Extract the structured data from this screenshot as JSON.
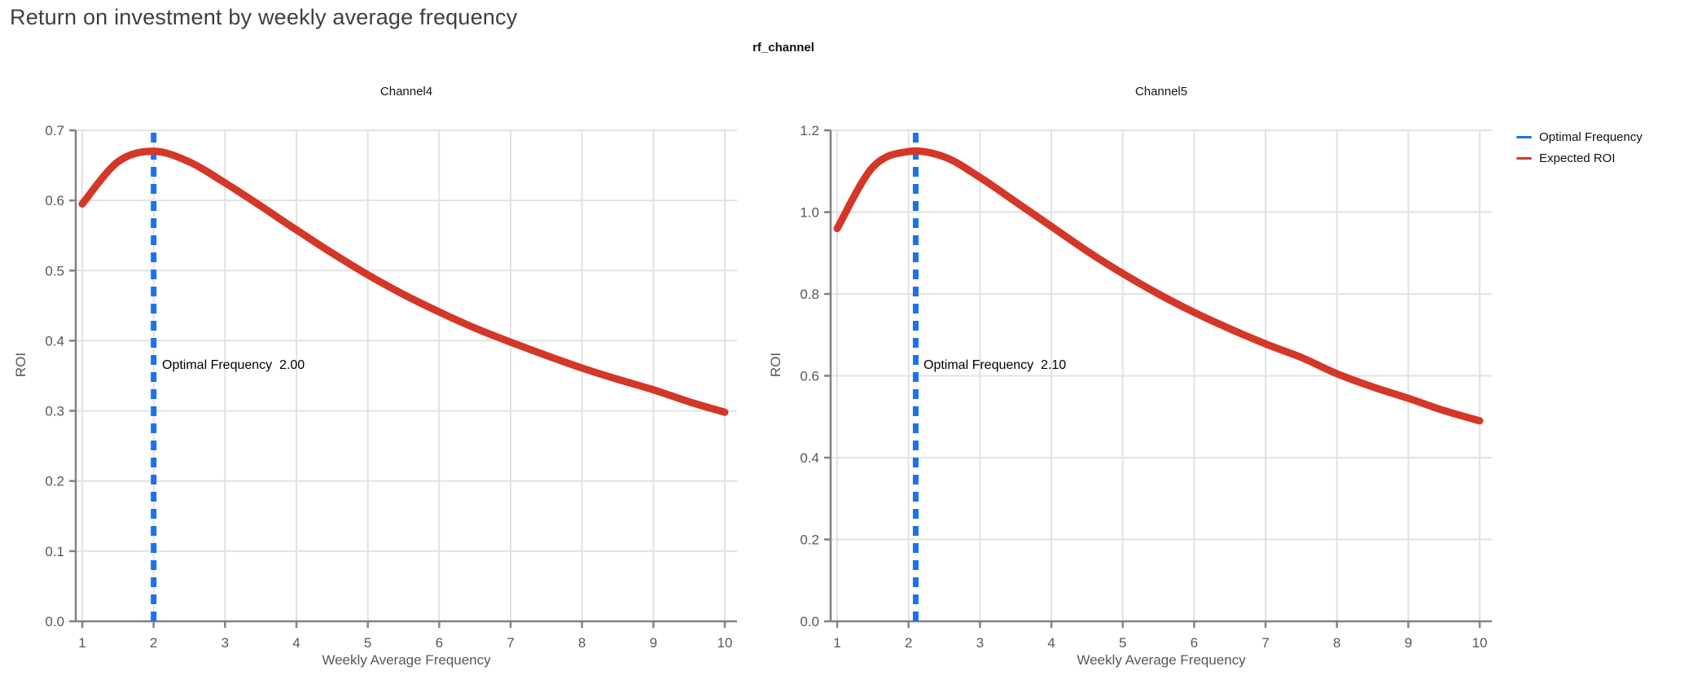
{
  "page": {
    "title": "Return on investment by weekly average frequency",
    "facet_label": "rf_channel"
  },
  "legend": {
    "items": [
      {
        "label": "Optimal Frequency",
        "color": "#1a73e8",
        "style": "dashed"
      },
      {
        "label": "Expected ROI",
        "color": "#d43728",
        "style": "solid"
      }
    ]
  },
  "chart_data": {
    "type": "line",
    "title": "Return on investment by weekly average frequency",
    "facet_by": "rf_channel",
    "xlabel": "Weekly Average Frequency",
    "ylabel": "ROI",
    "grid": true,
    "legend_position": "right",
    "colors": {
      "expected_roi_line": "#d43728",
      "optimal_frequency_line": "#1a73e8",
      "gridline": "#e2e2e2",
      "axis": "#7f8388",
      "tick_text": "#54585c"
    },
    "charts": [
      {
        "title": "Channel4",
        "optimal_frequency": 2.0,
        "annotation": "Optimal Frequency  2.00",
        "xlim": [
          1,
          10
        ],
        "ylim": [
          0,
          0.7
        ],
        "xticks": [
          1,
          2,
          3,
          4,
          5,
          6,
          7,
          8,
          9,
          10
        ],
        "yticks": [
          0.0,
          0.1,
          0.2,
          0.3,
          0.4,
          0.5,
          0.6,
          0.7
        ],
        "x": [
          1.0,
          1.5,
          2.0,
          2.5,
          3.0,
          3.5,
          4.0,
          4.5,
          5.0,
          5.5,
          6.0,
          6.5,
          7.0,
          7.5,
          8.0,
          8.5,
          9.0,
          9.5,
          10.0
        ],
        "roi": [
          0.595,
          0.655,
          0.67,
          0.655,
          0.625,
          0.592,
          0.558,
          0.525,
          0.494,
          0.466,
          0.441,
          0.418,
          0.398,
          0.379,
          0.361,
          0.345,
          0.33,
          0.313,
          0.298
        ]
      },
      {
        "title": "Channel5",
        "optimal_frequency": 2.1,
        "annotation": "Optimal Frequency  2.10",
        "xlim": [
          1,
          10
        ],
        "ylim": [
          0,
          1.2
        ],
        "xticks": [
          1,
          2,
          3,
          4,
          5,
          6,
          7,
          8,
          9,
          10
        ],
        "yticks": [
          0.0,
          0.2,
          0.4,
          0.6,
          0.8,
          1.0,
          1.2
        ],
        "x": [
          1.0,
          1.5,
          2.0,
          2.5,
          3.0,
          3.5,
          4.0,
          4.5,
          5.0,
          5.5,
          6.0,
          6.5,
          7.0,
          7.5,
          8.0,
          8.5,
          9.0,
          9.5,
          10.0
        ],
        "roi": [
          0.96,
          1.11,
          1.148,
          1.135,
          1.085,
          1.025,
          0.965,
          0.905,
          0.85,
          0.8,
          0.755,
          0.715,
          0.678,
          0.645,
          0.605,
          0.573,
          0.545,
          0.515,
          0.49
        ]
      }
    ]
  }
}
